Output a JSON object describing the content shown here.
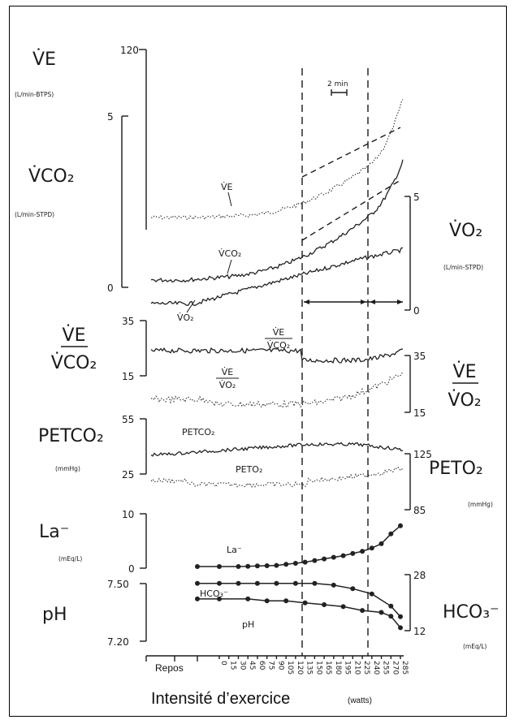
{
  "labels": {
    "ve": "V̇E",
    "ve_unit": "(L/min-BTPS)",
    "vco2": "V̇CO₂",
    "vco2_unit": "(L/min-STPD)",
    "vo2": "V̇O₂",
    "vo2_unit": "(L/min-STPD)",
    "ve_vco2_num": "V̇E",
    "ve_vco2_den": "V̇CO₂",
    "ve_vo2_num": "V̇E",
    "ve_vo2_den": "V̇O₂",
    "petco2": "PETCO₂",
    "petco2_unit": "(mmHg)",
    "peto2": "PETO₂",
    "peto2_unit": "(mmHg)",
    "la": "La⁻",
    "la_unit": "(mEq/L)",
    "ph": "pH",
    "hco3": "HCO₃⁻",
    "hco3_unit": "(mEq/L)",
    "scale": "2 min",
    "trace_ve": "V̇E",
    "trace_vco2": "V̇CO₂",
    "trace_vo2": "V̇O₂",
    "trace_ratio1_num": "V̇E",
    "trace_ratio1_den": "V̇CO₂",
    "trace_ratio2_num": "V̇E",
    "trace_ratio2_den": "V̇O₂",
    "trace_petco2": "PETCO₂",
    "trace_peto2": "PETO₂",
    "trace_la": "La⁻",
    "trace_hco3": "HCO₃⁻",
    "trace_ph": "pH"
  },
  "axes": {
    "ve_ticks": [
      "120",
      "5",
      "0"
    ],
    "vo2_ticks": [
      "5",
      "0"
    ],
    "ratio_left_ticks": [
      "35",
      "15"
    ],
    "ratio_right_ticks": [
      "35",
      "15"
    ],
    "petco2_ticks": [
      "55",
      "25"
    ],
    "peto2_ticks": [
      "125",
      "85"
    ],
    "la_ticks": [
      "10",
      "0"
    ],
    "ph_ticks": [
      "7.50",
      "7.20"
    ],
    "hco3_ticks": [
      "28",
      "12"
    ]
  },
  "x_axis": {
    "title": "Intensité d’exercice",
    "unit": "(watts)",
    "rest_label": "Repos",
    "ticks": [
      "0",
      "15",
      "30",
      "45",
      "60",
      "75",
      "90",
      "105",
      "120",
      "135",
      "150",
      "165",
      "180",
      "195",
      "210",
      "225",
      "240",
      "255",
      "270",
      "285"
    ]
  },
  "chart_data": {
    "type": "line",
    "x_label": "Intensité d’exercice (watts)",
    "categories": [
      "0",
      "15",
      "30",
      "45",
      "60",
      "75",
      "90",
      "105",
      "120",
      "135",
      "150",
      "165",
      "180",
      "195",
      "210",
      "225",
      "240",
      "255",
      "270",
      "285"
    ],
    "series": [
      {
        "name": "La⁻",
        "unit": "(mEq/L)",
        "x": [
          "0",
          "30",
          "45",
          "60",
          "75",
          "90",
          "105",
          "120",
          "135",
          "150",
          "165",
          "180",
          "195",
          "210",
          "225",
          "240",
          "255",
          "270",
          "285"
        ],
        "values": [
          0.3,
          0.3,
          0.35,
          0.4,
          0.45,
          0.5,
          0.7,
          0.9,
          1.1,
          1.4,
          1.7,
          2.0,
          2.3,
          2.7,
          3.1,
          3.7,
          4.5,
          6.3,
          7.8
        ]
      },
      {
        "name": "HCO₃⁻",
        "unit": "(mEq/L)",
        "x": [
          "0",
          "30",
          "60",
          "90",
          "120",
          "150",
          "180",
          "210",
          "240",
          "270",
          "285"
        ],
        "values": [
          25.5,
          25.5,
          25.5,
          25.5,
          25.5,
          25.5,
          25.0,
          24.0,
          22.5,
          19.0,
          16.0
        ]
      },
      {
        "name": "pH",
        "x": [
          "0",
          "45",
          "75",
          "105",
          "135",
          "165",
          "195",
          "225",
          "255",
          "270",
          "285"
        ],
        "values": [
          7.42,
          7.42,
          7.41,
          7.41,
          7.4,
          7.39,
          7.38,
          7.36,
          7.35,
          7.33,
          7.27
        ]
      }
    ]
  }
}
